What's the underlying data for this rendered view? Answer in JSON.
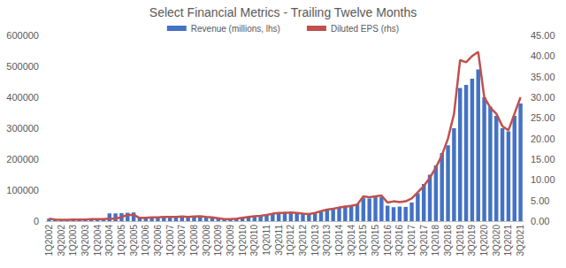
{
  "chart_data": {
    "type": "bar",
    "title": "Select Financial Metrics - Trailing Twelve Months",
    "categories": [
      "1Q2002",
      null,
      "3Q2002",
      null,
      "1Q2003",
      null,
      "3Q2003",
      null,
      "1Q2004",
      null,
      "3Q2004",
      null,
      "1Q2005",
      null,
      "3Q2005",
      null,
      "1Q2006",
      null,
      "3Q2006",
      null,
      "1Q2007",
      null,
      "3Q2007",
      null,
      "1Q2008",
      null,
      "3Q2008",
      null,
      "1Q2009",
      null,
      "3Q2009",
      null,
      "1Q2010",
      null,
      "3Q2010",
      null,
      "1Q2011",
      null,
      "3Q2011",
      null,
      "1Q2012",
      null,
      "3Q2012",
      null,
      "1Q2013",
      null,
      "3Q2013",
      null,
      "1Q2014",
      null,
      "3Q2014",
      null,
      "1Q2015",
      null,
      "3Q2015",
      null,
      "1Q2016",
      null,
      "3Q2016",
      null,
      "1Q2017",
      null,
      "3Q2017",
      null,
      "1Q2018",
      null,
      "3Q2018",
      null,
      "1Q2019",
      null,
      "3Q2019",
      null,
      "1Q2020",
      null,
      "3Q2020",
      null,
      "1Q2021",
      null,
      "3Q2021"
    ],
    "series": [
      {
        "name": "Revenue (millions, lhs)",
        "type": "bar",
        "color": "#4472c4",
        "values": [
          8000,
          7000,
          5000,
          5000,
          5000,
          6000,
          6000,
          6000,
          6000,
          7000,
          25000,
          25000,
          26000,
          27000,
          28000,
          12000,
          12000,
          13000,
          14000,
          15000,
          16000,
          17000,
          16000,
          15000,
          14000,
          15000,
          14000,
          12000,
          10000,
          7000,
          6000,
          8000,
          12000,
          14000,
          15000,
          17000,
          20000,
          24000,
          28000,
          30000,
          29000,
          28000,
          25000,
          24000,
          26000,
          30000,
          35000,
          40000,
          45000,
          50000,
          52000,
          55000,
          75000,
          73000,
          77000,
          78000,
          50000,
          45000,
          47000,
          46000,
          60000,
          90000,
          120000,
          150000,
          180000,
          220000,
          245000,
          300000,
          430000,
          440000,
          460000,
          490000,
          400000,
          370000,
          340000,
          300000,
          290000,
          340000,
          380000
        ]
      },
      {
        "name": "Diluted EPS (rhs)",
        "type": "line",
        "axis": "y2",
        "color": "#c0504d",
        "values": [
          0.6,
          0.4,
          0.3,
          0.3,
          0.4,
          0.4,
          0.4,
          0.5,
          0.5,
          0.5,
          0.6,
          0.6,
          1.0,
          1.5,
          1.5,
          0.8,
          0.8,
          0.9,
          0.9,
          1.0,
          1.0,
          1.0,
          1.1,
          1.0,
          1.1,
          1.2,
          1.0,
          0.9,
          0.7,
          0.5,
          0.5,
          0.6,
          0.8,
          1.0,
          1.2,
          1.3,
          1.5,
          1.8,
          2.0,
          2.0,
          2.1,
          2.0,
          1.8,
          1.7,
          2.0,
          2.4,
          2.8,
          3.0,
          3.3,
          3.5,
          3.7,
          4.0,
          6.0,
          5.8,
          6.0,
          6.2,
          4.5,
          4.8,
          4.6,
          4.8,
          5.5,
          7.0,
          8.5,
          10.5,
          13.0,
          16.0,
          20.0,
          26.0,
          39.0,
          38.5,
          40.0,
          41.0,
          30.0,
          27.5,
          26.0,
          23.0,
          22.0,
          26.0,
          30.0
        ]
      }
    ],
    "ylim": [
      0,
      600000
    ],
    "yticks": [
      0,
      100000,
      200000,
      300000,
      400000,
      500000,
      600000
    ],
    "y2lim": [
      0,
      45
    ],
    "y2ticks": [
      {
        "value": 0,
        "label": "0.00"
      },
      {
        "value": 5,
        "label": "5.00"
      },
      {
        "value": 10,
        "label": "10.00"
      },
      {
        "value": 15,
        "label": "15.00"
      },
      {
        "value": 20,
        "label": "20.00"
      },
      {
        "value": 25,
        "label": "25.00"
      },
      {
        "value": 30,
        "label": "30.00"
      },
      {
        "value": 35,
        "label": "35.00"
      },
      {
        "value": 40,
        "label": "40.00"
      },
      {
        "value": 45,
        "label": "45.00"
      }
    ],
    "grid": false,
    "legend": "top"
  }
}
